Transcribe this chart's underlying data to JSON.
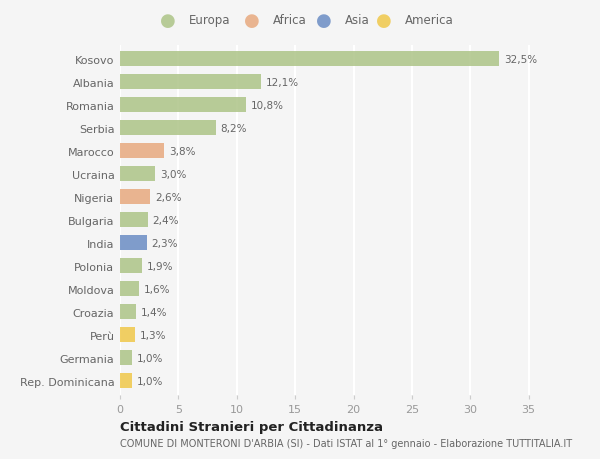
{
  "countries": [
    "Kosovo",
    "Albania",
    "Romania",
    "Serbia",
    "Marocco",
    "Ucraina",
    "Nigeria",
    "Bulgaria",
    "India",
    "Polonia",
    "Moldova",
    "Croazia",
    "Perù",
    "Germania",
    "Rep. Dominicana"
  ],
  "values": [
    32.5,
    12.1,
    10.8,
    8.2,
    3.8,
    3.0,
    2.6,
    2.4,
    2.3,
    1.9,
    1.6,
    1.4,
    1.3,
    1.0,
    1.0
  ],
  "labels": [
    "32,5%",
    "12,1%",
    "10,8%",
    "8,2%",
    "3,8%",
    "3,0%",
    "2,6%",
    "2,4%",
    "2,3%",
    "1,9%",
    "1,6%",
    "1,4%",
    "1,3%",
    "1,0%",
    "1,0%"
  ],
  "categories": [
    "Europa",
    "Europa",
    "Europa",
    "Europa",
    "Africa",
    "Europa",
    "Africa",
    "Europa",
    "Asia",
    "Europa",
    "Europa",
    "Europa",
    "America",
    "Europa",
    "America"
  ],
  "colors": {
    "Europa": "#adc487",
    "Africa": "#e8a97e",
    "Asia": "#6b8dc4",
    "America": "#f0c84a"
  },
  "legend_categories": [
    "Europa",
    "Africa",
    "Asia",
    "America"
  ],
  "legend_colors": [
    "#adc487",
    "#e8a97e",
    "#6b8dc4",
    "#f0c84a"
  ],
  "title": "Cittadini Stranieri per Cittadinanza",
  "subtitle": "COMUNE DI MONTERONI D'ARBIA (SI) - Dati ISTAT al 1° gennaio - Elaborazione TUTTITALIA.IT",
  "xlim": [
    0,
    37
  ],
  "xticks": [
    0,
    5,
    10,
    15,
    20,
    25,
    30,
    35
  ],
  "bg_color": "#f5f5f5",
  "grid_color": "#ffffff",
  "bar_alpha": 0.85,
  "bar_height": 0.65
}
